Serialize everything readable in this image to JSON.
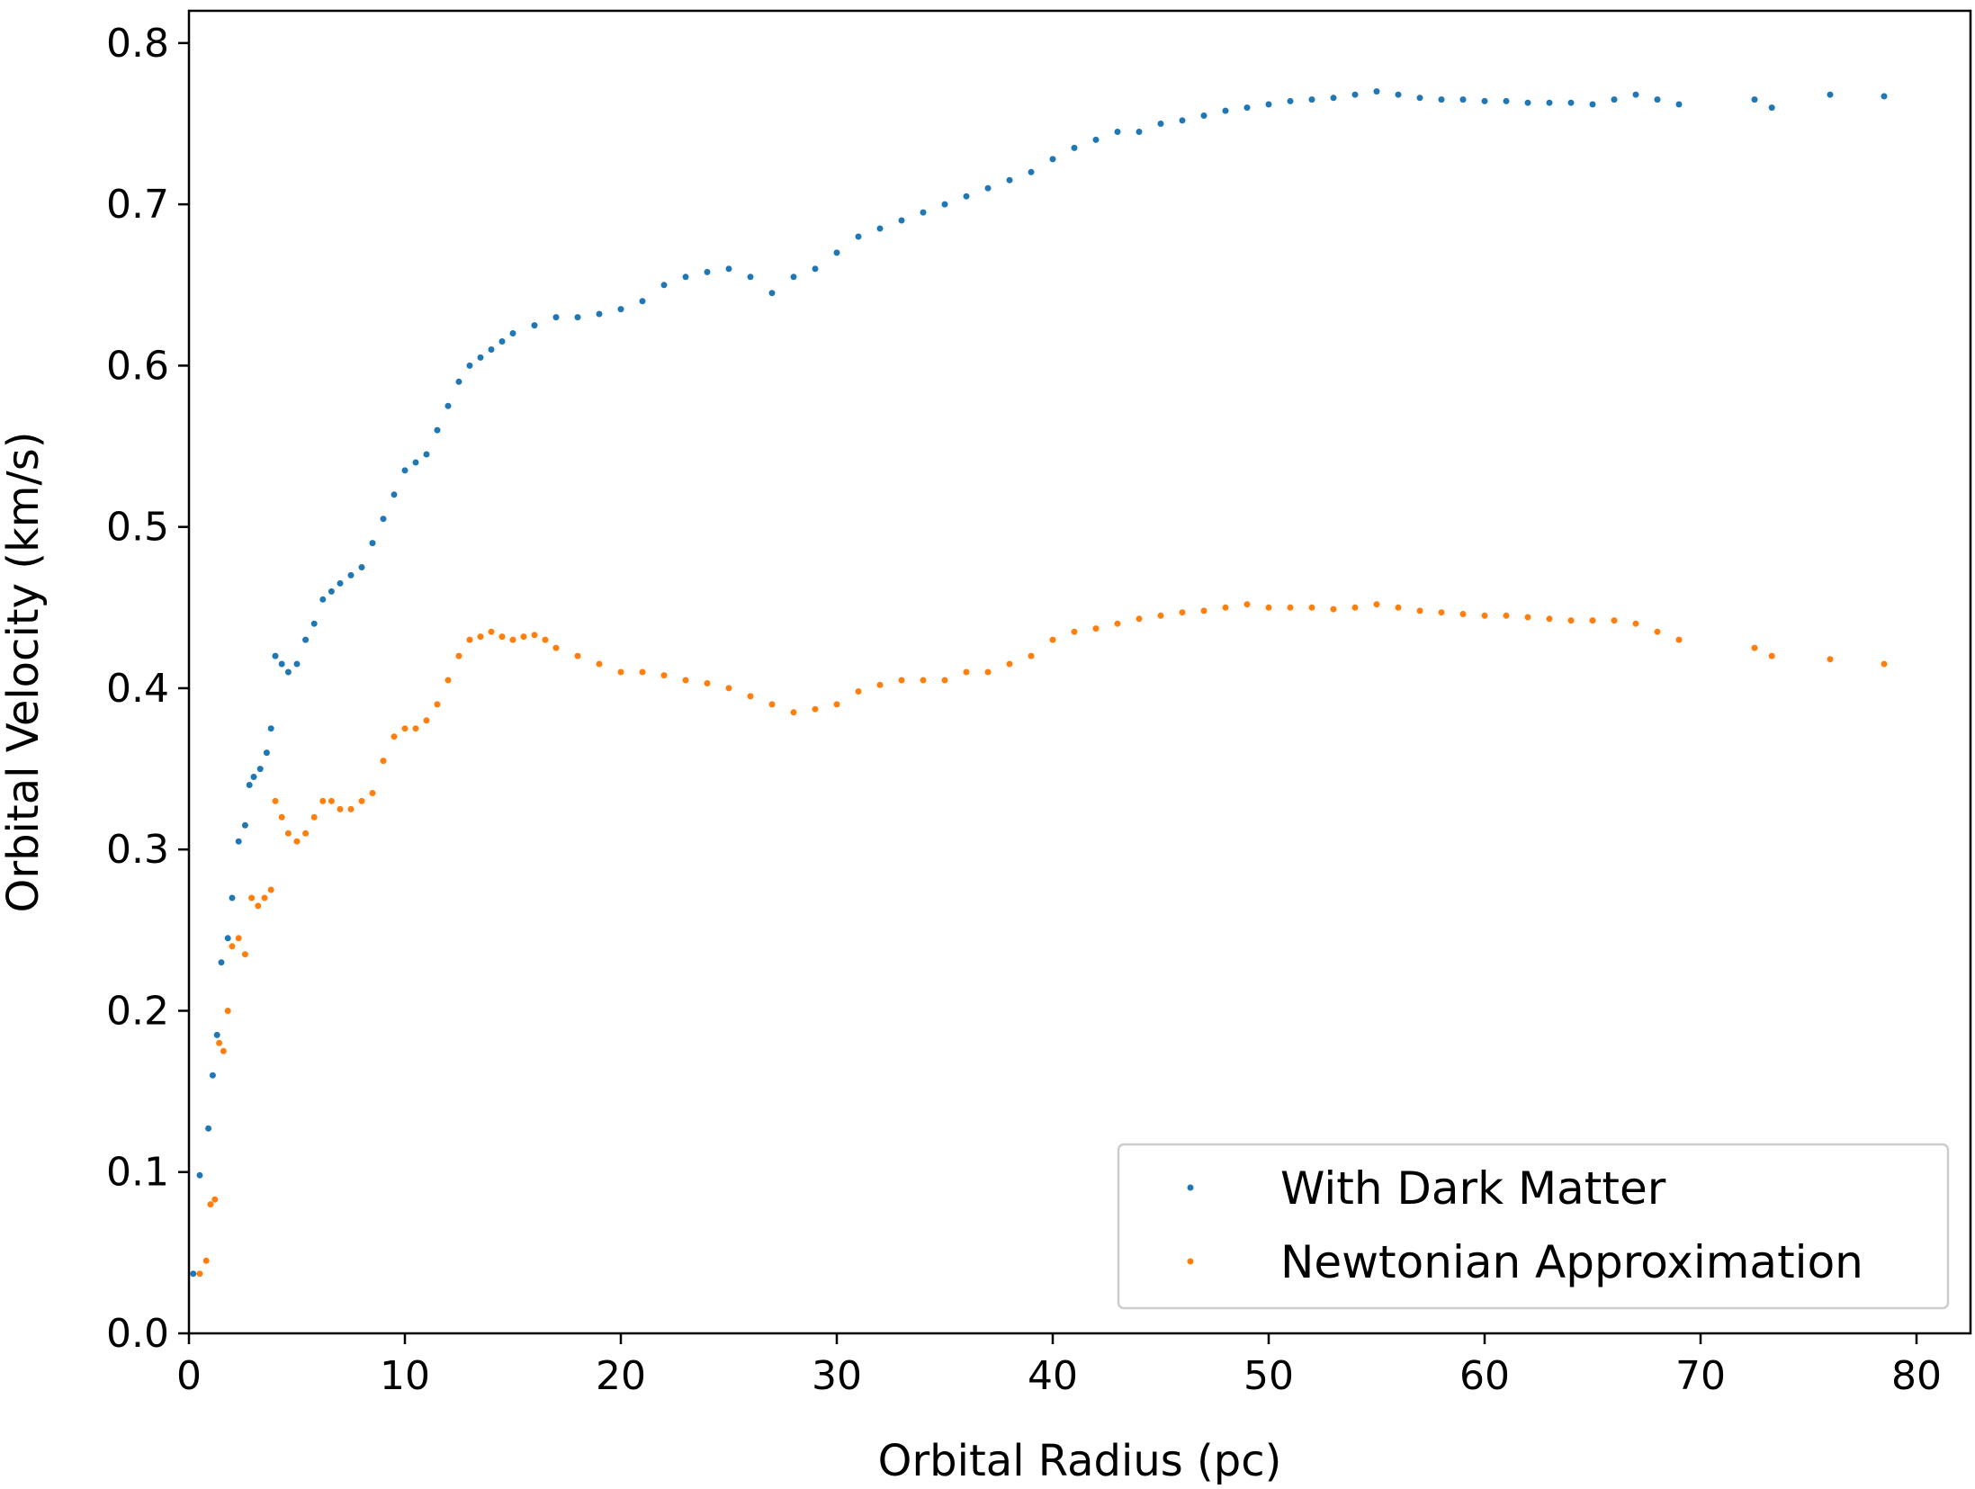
{
  "chart_data": {
    "type": "scatter",
    "title": "",
    "xlabel": "Orbital Radius (pc)",
    "ylabel": "Orbital Velocity (km/s)",
    "xlim": [
      0,
      82.5
    ],
    "ylim": [
      0,
      0.82
    ],
    "xticks": [
      0,
      10,
      20,
      30,
      40,
      50,
      60,
      70,
      80
    ],
    "yticks": [
      0.0,
      0.1,
      0.2,
      0.3,
      0.4,
      0.5,
      0.6,
      0.7,
      0.8
    ],
    "xtick_labels": [
      "0",
      "10",
      "20",
      "30",
      "40",
      "50",
      "60",
      "70",
      "80"
    ],
    "ytick_labels": [
      "0.0",
      "0.1",
      "0.2",
      "0.3",
      "0.4",
      "0.5",
      "0.6",
      "0.7",
      "0.8"
    ],
    "grid": false,
    "legend_position": "lower-right",
    "series": [
      {
        "name": "With Dark Matter",
        "color": "#1f77b4",
        "x": [
          0.2,
          0.5,
          0.9,
          1.1,
          1.3,
          1.5,
          1.8,
          2.0,
          2.3,
          2.6,
          2.8,
          3.0,
          3.3,
          3.6,
          3.8,
          4.0,
          4.3,
          4.6,
          5.0,
          5.4,
          5.8,
          6.2,
          6.6,
          7.0,
          7.5,
          8.0,
          8.5,
          9.0,
          9.5,
          10.0,
          10.5,
          11.0,
          11.5,
          12.0,
          12.5,
          13.0,
          13.5,
          14.0,
          14.5,
          15.0,
          16.0,
          17.0,
          18.0,
          19.0,
          20.0,
          21.0,
          22.0,
          23.0,
          24.0,
          25.0,
          26.0,
          27.0,
          28.0,
          29.0,
          30.0,
          31.0,
          32.0,
          33.0,
          34.0,
          35.0,
          36.0,
          37.0,
          38.0,
          39.0,
          40.0,
          41.0,
          42.0,
          43.0,
          44.0,
          45.0,
          46.0,
          47.0,
          48.0,
          49.0,
          50.0,
          51.0,
          52.0,
          53.0,
          54.0,
          55.0,
          56.0,
          57.0,
          58.0,
          59.0,
          60.0,
          61.0,
          62.0,
          63.0,
          64.0,
          65.0,
          66.0,
          67.0,
          68.0,
          69.0,
          72.5,
          73.3,
          76.0,
          78.5
        ],
        "y": [
          0.037,
          0.098,
          0.127,
          0.16,
          0.185,
          0.23,
          0.245,
          0.27,
          0.305,
          0.315,
          0.34,
          0.345,
          0.35,
          0.36,
          0.375,
          0.42,
          0.415,
          0.41,
          0.415,
          0.43,
          0.44,
          0.455,
          0.46,
          0.465,
          0.47,
          0.475,
          0.49,
          0.505,
          0.52,
          0.535,
          0.54,
          0.545,
          0.56,
          0.575,
          0.59,
          0.6,
          0.605,
          0.61,
          0.615,
          0.62,
          0.625,
          0.63,
          0.63,
          0.632,
          0.635,
          0.64,
          0.65,
          0.655,
          0.658,
          0.66,
          0.655,
          0.645,
          0.655,
          0.66,
          0.67,
          0.68,
          0.685,
          0.69,
          0.695,
          0.7,
          0.705,
          0.71,
          0.715,
          0.72,
          0.728,
          0.735,
          0.74,
          0.745,
          0.745,
          0.75,
          0.752,
          0.755,
          0.758,
          0.76,
          0.762,
          0.764,
          0.765,
          0.766,
          0.768,
          0.77,
          0.768,
          0.766,
          0.765,
          0.765,
          0.764,
          0.764,
          0.763,
          0.763,
          0.763,
          0.762,
          0.765,
          0.768,
          0.765,
          0.762,
          0.765,
          0.76,
          0.768,
          0.767
        ]
      },
      {
        "name": "Newtonian Approximation",
        "color": "#ff7f0e",
        "x": [
          0.5,
          0.8,
          1.0,
          1.2,
          1.4,
          1.6,
          1.8,
          2.0,
          2.3,
          2.6,
          2.9,
          3.2,
          3.5,
          3.8,
          4.0,
          4.3,
          4.6,
          5.0,
          5.4,
          5.8,
          6.2,
          6.6,
          7.0,
          7.5,
          8.0,
          8.5,
          9.0,
          9.5,
          10.0,
          10.5,
          11.0,
          11.5,
          12.0,
          12.5,
          13.0,
          13.5,
          14.0,
          14.5,
          15.0,
          15.5,
          16.0,
          16.5,
          17.0,
          18.0,
          19.0,
          20.0,
          21.0,
          22.0,
          23.0,
          24.0,
          25.0,
          26.0,
          27.0,
          28.0,
          29.0,
          30.0,
          31.0,
          32.0,
          33.0,
          34.0,
          35.0,
          36.0,
          37.0,
          38.0,
          39.0,
          40.0,
          41.0,
          42.0,
          43.0,
          44.0,
          45.0,
          46.0,
          47.0,
          48.0,
          49.0,
          50.0,
          51.0,
          52.0,
          53.0,
          54.0,
          55.0,
          56.0,
          57.0,
          58.0,
          59.0,
          60.0,
          61.0,
          62.0,
          63.0,
          64.0,
          65.0,
          66.0,
          67.0,
          68.0,
          69.0,
          72.5,
          73.3,
          76.0,
          78.5
        ],
        "y": [
          0.037,
          0.045,
          0.08,
          0.083,
          0.18,
          0.175,
          0.2,
          0.24,
          0.245,
          0.235,
          0.27,
          0.265,
          0.27,
          0.275,
          0.33,
          0.32,
          0.31,
          0.305,
          0.31,
          0.32,
          0.33,
          0.33,
          0.325,
          0.325,
          0.33,
          0.335,
          0.355,
          0.37,
          0.375,
          0.375,
          0.38,
          0.39,
          0.405,
          0.42,
          0.43,
          0.432,
          0.435,
          0.432,
          0.43,
          0.432,
          0.433,
          0.43,
          0.425,
          0.42,
          0.415,
          0.41,
          0.41,
          0.408,
          0.405,
          0.403,
          0.4,
          0.395,
          0.39,
          0.385,
          0.387,
          0.39,
          0.398,
          0.402,
          0.405,
          0.405,
          0.405,
          0.41,
          0.41,
          0.415,
          0.42,
          0.43,
          0.435,
          0.437,
          0.44,
          0.443,
          0.445,
          0.447,
          0.448,
          0.45,
          0.452,
          0.45,
          0.45,
          0.45,
          0.449,
          0.45,
          0.452,
          0.45,
          0.448,
          0.447,
          0.446,
          0.445,
          0.445,
          0.444,
          0.443,
          0.442,
          0.442,
          0.442,
          0.44,
          0.435,
          0.43,
          0.425,
          0.42,
          0.418,
          0.415
        ]
      }
    ]
  }
}
